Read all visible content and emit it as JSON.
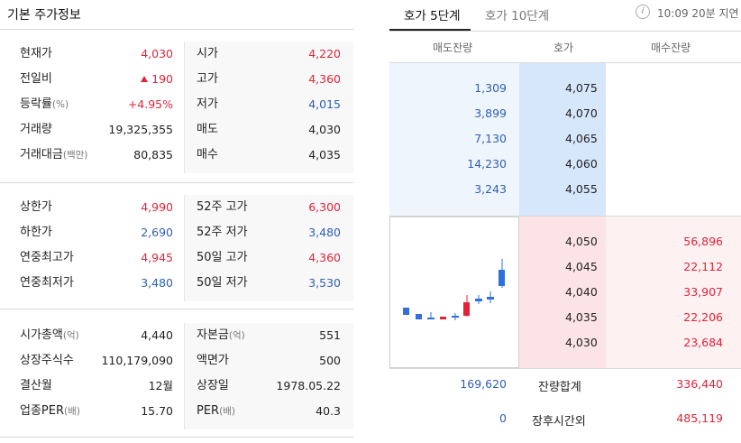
{
  "basic": {
    "title": "기본 주가정보",
    "section1": [
      {
        "l1": "현재가",
        "v1": "4,030",
        "c1": "red",
        "l2": "시가",
        "v2": "4,220",
        "c2": "red"
      },
      {
        "l1": "전일비",
        "v1": "190",
        "c1": "red",
        "arrow": "up",
        "l2": "고가",
        "v2": "4,360",
        "c2": "red"
      },
      {
        "l1": "등락률",
        "u1": "(%)",
        "v1": "+4.95%",
        "c1": "red",
        "l2": "저가",
        "v2": "4,015",
        "c2": "blue"
      },
      {
        "l1": "거래량",
        "v1": "19,325,355",
        "c1": "",
        "l2": "매도",
        "v2": "4,030",
        "c2": ""
      },
      {
        "l1": "거래대금",
        "u1": "(백만)",
        "v1": "80,835",
        "c1": "",
        "l2": "매수",
        "v2": "4,035",
        "c2": ""
      }
    ],
    "section2": [
      {
        "l1": "상한가",
        "v1": "4,990",
        "c1": "red",
        "l2": "52주 고가",
        "v2": "6,300",
        "c2": "red"
      },
      {
        "l1": "하한가",
        "v1": "2,690",
        "c1": "blue",
        "l2": "52주 저가",
        "v2": "3,480",
        "c2": "blue"
      },
      {
        "l1": "연중최고가",
        "v1": "4,945",
        "c1": "red",
        "l2": "50일 고가",
        "v2": "4,360",
        "c2": "red"
      },
      {
        "l1": "연중최저가",
        "v1": "3,480",
        "c1": "blue",
        "l2": "50일 저가",
        "v2": "3,530",
        "c2": "blue"
      }
    ],
    "section3": [
      {
        "l1": "시가총액",
        "u1": "(억)",
        "v1": "4,440",
        "c1": "",
        "l2": "자본금",
        "u2": "(억)",
        "v2": "551",
        "c2": ""
      },
      {
        "l1": "상장주식수",
        "v1": "110,179,090",
        "c1": "",
        "l2": "액면가",
        "v2": "500",
        "c2": ""
      },
      {
        "l1": "결산월",
        "v1": "12월",
        "c1": "",
        "l2": "상장일",
        "v2": "1978.05.22",
        "c2": ""
      },
      {
        "l1": "업종PER",
        "u1": "(배)",
        "v1": "15.70",
        "c1": "",
        "l2": "PER",
        "u2": "(배)",
        "v2": "40.3",
        "c2": ""
      }
    ]
  },
  "orderbook": {
    "tabs": {
      "active": "호가 5단계",
      "inactive": "호가 10단계"
    },
    "delay_text": "10:09 20분 지연",
    "info_icon": "i",
    "headers": {
      "sell": "매도잔량",
      "price": "호가",
      "buy": "매수잔량"
    },
    "asks": [
      {
        "qty": "1,309",
        "price": "4,075"
      },
      {
        "qty": "3,899",
        "price": "4,070"
      },
      {
        "qty": "7,130",
        "price": "4,065"
      },
      {
        "qty": "14,230",
        "price": "4,060"
      },
      {
        "qty": "3,243",
        "price": "4,055"
      }
    ],
    "bids": [
      {
        "price": "4,050",
        "qty": "56,896"
      },
      {
        "price": "4,045",
        "qty": "22,112"
      },
      {
        "price": "4,040",
        "qty": "33,907"
      },
      {
        "price": "4,035",
        "qty": "22,206"
      },
      {
        "price": "4,030",
        "qty": "23,684"
      }
    ],
    "totals": {
      "sell": "169,620",
      "label": "잔량합계",
      "buy": "336,440"
    },
    "after_hours": {
      "sell": "0",
      "label": "장후시간외",
      "buy": "485,119"
    }
  },
  "colors": {
    "up": "#e0243a",
    "down": "#2f5fb3",
    "candle_up": "#e0243a",
    "candle_down": "#2f6fe0"
  }
}
